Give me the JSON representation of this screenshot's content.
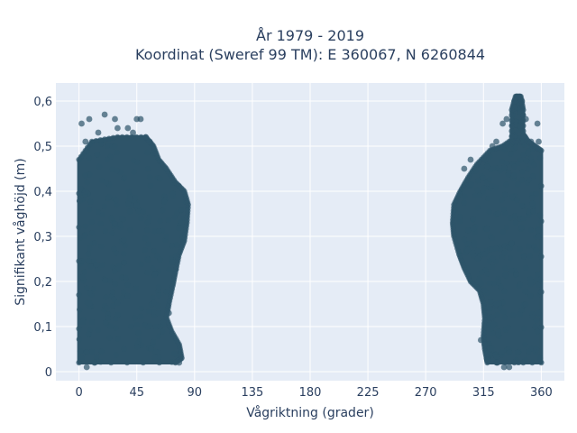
{
  "chart_data": {
    "type": "scatter",
    "title_line1": "År 1979 - 2019",
    "title_line2": "Koordinat (Sweref 99 TM): E 360067, N 6260844",
    "xlabel": "Vågriktning (grader)",
    "ylabel": "Signifikant våghöjd (m)",
    "xlim": [
      -18,
      378
    ],
    "ylim": [
      -0.02,
      0.64
    ],
    "x_ticks": [
      0,
      45,
      90,
      135,
      180,
      225,
      270,
      315,
      360
    ],
    "x_tick_labels": [
      "0",
      "45",
      "90",
      "135",
      "180",
      "225",
      "270",
      "315",
      "360"
    ],
    "y_ticks": [
      0,
      0.1,
      0.2,
      0.3,
      0.4,
      0.5,
      0.6
    ],
    "y_tick_labels": [
      "0",
      "0,1",
      "0,2",
      "0,3",
      "0,4",
      "0,5",
      "0,6"
    ],
    "grid": true,
    "plot_bgcolor": "#e5ecf6",
    "marker_color": "#2e5469",
    "clusters": [
      {
        "range_note": "dense cloud from direction 0 to ~85",
        "outline": [
          [
            0,
            0.02
          ],
          [
            75,
            0.02
          ],
          [
            80,
            0.03
          ],
          [
            78,
            0.06
          ],
          [
            72,
            0.09
          ],
          [
            68,
            0.12
          ],
          [
            70,
            0.15
          ],
          [
            73,
            0.19
          ],
          [
            75,
            0.22
          ],
          [
            78,
            0.26
          ],
          [
            82,
            0.29
          ],
          [
            84,
            0.33
          ],
          [
            85,
            0.37
          ],
          [
            82,
            0.4
          ],
          [
            75,
            0.42
          ],
          [
            68,
            0.45
          ],
          [
            62,
            0.47
          ],
          [
            58,
            0.5
          ],
          [
            52,
            0.52
          ],
          [
            30,
            0.52
          ],
          [
            10,
            0.51
          ],
          [
            0,
            0.47
          ]
        ],
        "outliers": [
          [
            2,
            0.55
          ],
          [
            8,
            0.56
          ],
          [
            20,
            0.57
          ],
          [
            28,
            0.56
          ],
          [
            45,
            0.56
          ],
          [
            48,
            0.56
          ],
          [
            38,
            0.54
          ],
          [
            42,
            0.53
          ],
          [
            52,
            0.52
          ],
          [
            55,
            0.51
          ],
          [
            15,
            0.53
          ],
          [
            30,
            0.54
          ],
          [
            5,
            0.51
          ],
          [
            3,
            0.11
          ],
          [
            10,
            0.11
          ],
          [
            62,
            0.13
          ],
          [
            70,
            0.13
          ],
          [
            2,
            0.03
          ],
          [
            6,
            0.01
          ],
          [
            12,
            0.02
          ],
          [
            78,
            0.02
          ],
          [
            74,
            0.04
          ],
          [
            60,
            0.1
          ],
          [
            66,
            0.11
          ],
          [
            5,
            0.4
          ],
          [
            8,
            0.36
          ],
          [
            4,
            0.3
          ]
        ]
      },
      {
        "range_note": "dense cloud from direction ~290 to 360",
        "outline": [
          [
            318,
            0.02
          ],
          [
            360,
            0.02
          ],
          [
            360,
            0.49
          ],
          [
            355,
            0.5
          ],
          [
            350,
            0.51
          ],
          [
            345,
            0.53
          ],
          [
            340,
            0.52
          ],
          [
            330,
            0.5
          ],
          [
            320,
            0.49
          ],
          [
            310,
            0.46
          ],
          [
            303,
            0.43
          ],
          [
            297,
            0.4
          ],
          [
            292,
            0.37
          ],
          [
            291,
            0.33
          ],
          [
            292,
            0.3
          ],
          [
            296,
            0.26
          ],
          [
            300,
            0.23
          ],
          [
            305,
            0.2
          ],
          [
            312,
            0.18
          ],
          [
            315,
            0.15
          ],
          [
            316,
            0.12
          ],
          [
            315,
            0.08
          ],
          [
            316,
            0.05
          ]
        ],
        "spike": [
          [
            337,
            0.51
          ],
          [
            346,
            0.51
          ],
          [
            346,
            0.58
          ],
          [
            344,
            0.61
          ],
          [
            340,
            0.61
          ],
          [
            337,
            0.58
          ]
        ],
        "outliers": [
          [
            341,
            0.61
          ],
          [
            343,
            0.61
          ],
          [
            339,
            0.6
          ],
          [
            345,
            0.6
          ],
          [
            333,
            0.56
          ],
          [
            348,
            0.56
          ],
          [
            357,
            0.55
          ],
          [
            330,
            0.55
          ],
          [
            325,
            0.51
          ],
          [
            352,
            0.51
          ],
          [
            358,
            0.51
          ],
          [
            322,
            0.5
          ],
          [
            313,
            0.07
          ],
          [
            316,
            0.06
          ],
          [
            331,
            0.01
          ],
          [
            335,
            0.01
          ],
          [
            326,
            0.02
          ],
          [
            318,
            0.04
          ],
          [
            322,
            0.12
          ],
          [
            325,
            0.15
          ],
          [
            356,
            0.05
          ],
          [
            359,
            0.03
          ],
          [
            320,
            0.14
          ],
          [
            300,
            0.45
          ],
          [
            305,
            0.47
          ]
        ]
      }
    ]
  }
}
